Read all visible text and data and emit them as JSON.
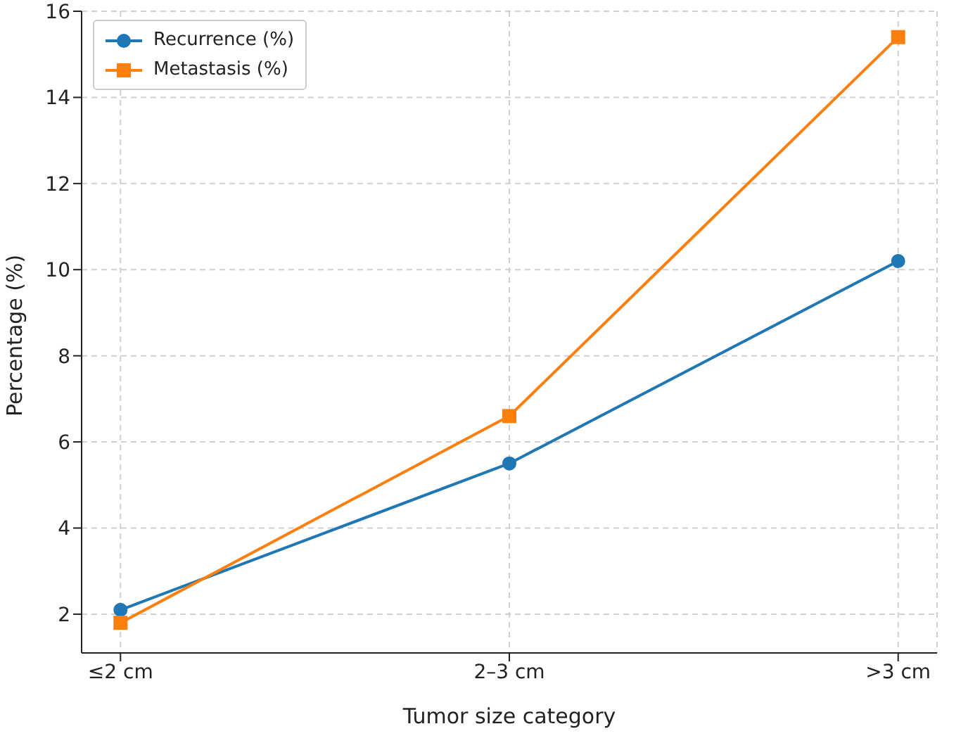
{
  "chart_data": {
    "type": "line",
    "xlabel": "Tumor size category",
    "ylabel": "Percentage (%)",
    "categories": [
      "≤2 cm",
      "2–3 cm",
      ">3 cm"
    ],
    "series": [
      {
        "name": "Recurrence (%)",
        "color": "#1f77b4",
        "values": [
          2.1,
          5.5,
          10.2
        ],
        "marker": "circle"
      },
      {
        "name": "Metastasis (%)",
        "color": "#ff7f0e",
        "values": [
          1.8,
          6.6,
          15.4
        ],
        "marker": "square"
      }
    ],
    "ylim": [
      1.1,
      16
    ],
    "yticks": [
      2,
      4,
      6,
      8,
      10,
      12,
      14,
      16
    ],
    "grid": true,
    "legend": "top left",
    "line_style": "solid"
  }
}
